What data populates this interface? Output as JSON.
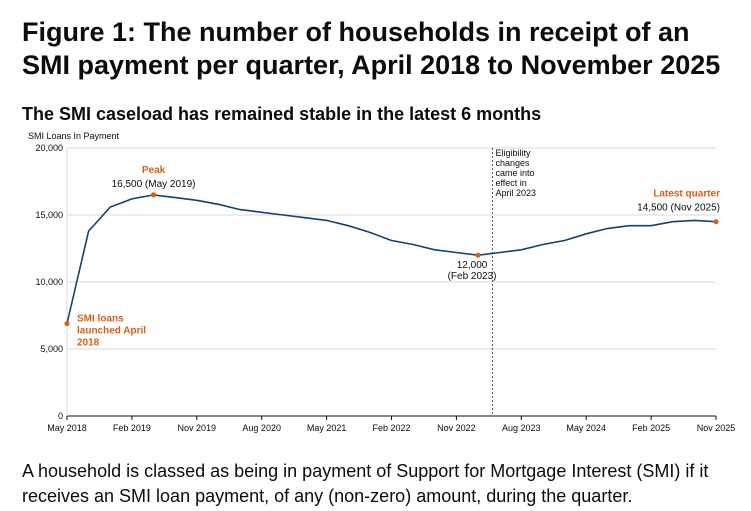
{
  "figure_title": "Figure 1: The number of households in receipt of an SMI payment per quarter, April 2018 to November 2025",
  "caption": "A household is classed as being in payment of Support for Mortgage Interest (SMI) if it receives an SMI loan payment, of any (non-zero) amount, during the quarter.",
  "colors": {
    "line": "#12436d",
    "highlight": "#d4601a",
    "grid": "#d9d9d9",
    "axis": "#0b0c0c"
  },
  "chart_data": {
    "type": "line",
    "title": "The SMI caseload has remained stable in the latest 6 months",
    "ylabel": "SMI Loans In Payment",
    "ylim": [
      0,
      20000
    ],
    "yticks": [
      0,
      5000,
      10000,
      15000,
      20000
    ],
    "ytick_labels": [
      "0",
      "5,000",
      "10,000",
      "15,000",
      "20,000"
    ],
    "xticks": [
      "May 2018",
      "Feb 2019",
      "Nov 2019",
      "Aug 2020",
      "May 2021",
      "Feb 2022",
      "Nov 2022",
      "Aug 2023",
      "May 2024",
      "Feb 2025",
      "Nov 2025"
    ],
    "grid": "horizontal",
    "series": [
      {
        "x": [
          "May 2018",
          "Aug 2018",
          "Nov 2018",
          "Feb 2019",
          "May 2019",
          "Aug 2019",
          "Nov 2019",
          "Feb 2020",
          "May 2020",
          "Aug 2020",
          "Nov 2020",
          "Feb 2021",
          "May 2021",
          "Aug 2021",
          "Nov 2021",
          "Feb 2022",
          "May 2022",
          "Aug 2022",
          "Nov 2022",
          "Feb 2023",
          "May 2023",
          "Aug 2023",
          "Nov 2023",
          "Feb 2024",
          "May 2024",
          "Aug 2024",
          "Nov 2024",
          "Feb 2025",
          "May 2025",
          "Aug 2025",
          "Nov 2025"
        ],
        "values": [
          6900,
          13800,
          15600,
          16200,
          16500,
          16300,
          16100,
          15800,
          15400,
          15200,
          15000,
          14800,
          14600,
          14200,
          13700,
          13100,
          12800,
          12400,
          12200,
          12000,
          12200,
          12400,
          12800,
          13100,
          13600,
          14000,
          14200,
          14200,
          14500,
          14600,
          14500
        ]
      }
    ],
    "annotations": {
      "start": {
        "x": "May 2018",
        "value": 6900,
        "lines": [
          "SMI loans",
          "launched April",
          "2018"
        ]
      },
      "peak": {
        "x": "May 2019",
        "value": 16500,
        "heading": "Peak",
        "label": "16,500 (May 2019)"
      },
      "trough": {
        "x": "Feb 2023",
        "value": 12000,
        "lines": [
          "12,000",
          "(Feb 2023)"
        ]
      },
      "latest": {
        "x": "Nov 2025",
        "value": 14500,
        "heading": "Latest quarter",
        "label": "14,500 (Nov 2025)"
      },
      "eligibility": {
        "x": "Apr 2023",
        "lines": [
          "Eligibility",
          "changes",
          "came into",
          "effect in",
          "April 2023"
        ]
      }
    }
  }
}
